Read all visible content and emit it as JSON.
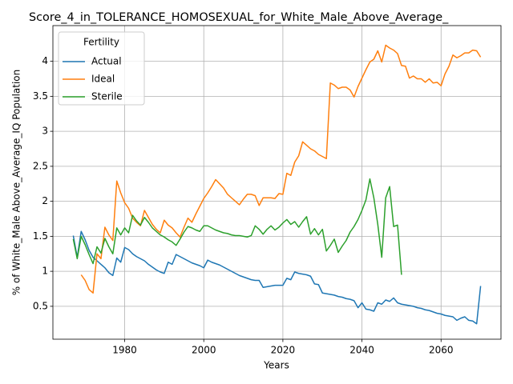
{
  "chart_data": {
    "type": "line",
    "title": "Score_4_in_TOLERANCE_HOMOSEXUAL_for_White_Male_Above_Average_",
    "xlabel": "Years",
    "ylabel": "% of White_Male Above_Average_IQ Population",
    "legend_title": "Fertility",
    "legend_position": "upper left",
    "grid": true,
    "x": [
      1967,
      1968,
      1969,
      1970,
      1971,
      1972,
      1973,
      1974,
      1975,
      1976,
      1977,
      1978,
      1979,
      1980,
      1981,
      1982,
      1983,
      1984,
      1985,
      1986,
      1987,
      1988,
      1989,
      1990,
      1991,
      1992,
      1993,
      1994,
      1995,
      1996,
      1997,
      1998,
      1999,
      2000,
      2001,
      2002,
      2003,
      2004,
      2005,
      2006,
      2007,
      2008,
      2009,
      2010,
      2011,
      2012,
      2013,
      2014,
      2015,
      2016,
      2017,
      2018,
      2019,
      2020,
      2021,
      2022,
      2023,
      2024,
      2025,
      2026,
      2027,
      2028,
      2029,
      2030,
      2031,
      2032,
      2033,
      2034,
      2035,
      2036,
      2037,
      2038,
      2039,
      2040,
      2041,
      2042,
      2043,
      2044,
      2045,
      2046,
      2047,
      2048,
      2049,
      2050,
      2051,
      2052,
      2053,
      2054,
      2055,
      2056,
      2057,
      2058,
      2059,
      2060,
      2061,
      2062,
      2063,
      2064,
      2065,
      2066,
      2067,
      2068,
      2069,
      2070
    ],
    "xlim": [
      1961.85,
      2075.15
    ],
    "xticks": [
      1980,
      2000,
      2020,
      2040,
      2060
    ],
    "ylim": [
      0.03,
      4.51
    ],
    "yticks": [
      0.5,
      1.0,
      1.5,
      2.0,
      2.5,
      3.0,
      3.5,
      4.0
    ],
    "series": [
      {
        "name": "Actual",
        "color": "#1f77b4",
        "values": [
          1.51,
          1.2,
          1.57,
          1.45,
          1.3,
          1.2,
          1.15,
          1.1,
          1.05,
          0.98,
          0.94,
          1.19,
          1.13,
          1.34,
          1.31,
          1.25,
          1.21,
          1.18,
          1.15,
          1.1,
          1.06,
          1.02,
          0.99,
          0.97,
          1.13,
          1.1,
          1.24,
          1.21,
          1.18,
          1.15,
          1.12,
          1.1,
          1.08,
          1.05,
          1.16,
          1.13,
          1.11,
          1.09,
          1.06,
          1.03,
          1.0,
          0.97,
          0.94,
          0.92,
          0.9,
          0.88,
          0.87,
          0.87,
          0.77,
          0.78,
          0.79,
          0.8,
          0.8,
          0.8,
          0.9,
          0.88,
          0.99,
          0.97,
          0.96,
          0.95,
          0.93,
          0.82,
          0.81,
          0.69,
          0.68,
          0.67,
          0.66,
          0.64,
          0.63,
          0.61,
          0.6,
          0.58,
          0.48,
          0.55,
          0.46,
          0.45,
          0.43,
          0.55,
          0.53,
          0.59,
          0.57,
          0.62,
          0.55,
          0.53,
          0.52,
          0.51,
          0.5,
          0.48,
          0.47,
          0.45,
          0.44,
          0.42,
          0.4,
          0.39,
          0.37,
          0.36,
          0.35,
          0.3,
          0.33,
          0.35,
          0.3,
          0.29,
          0.25,
          0.79
        ]
      },
      {
        "name": "Ideal",
        "color": "#ff7f0e",
        "values": [
          null,
          null,
          0.95,
          0.87,
          0.74,
          0.69,
          1.25,
          1.18,
          1.63,
          1.52,
          1.44,
          2.29,
          2.12,
          1.98,
          1.9,
          1.76,
          1.7,
          1.65,
          1.87,
          1.77,
          1.67,
          1.6,
          1.55,
          1.73,
          1.66,
          1.62,
          1.55,
          1.49,
          1.63,
          1.76,
          1.7,
          1.82,
          1.93,
          2.04,
          2.12,
          2.21,
          2.31,
          2.25,
          2.19,
          2.1,
          2.05,
          2.0,
          1.95,
          2.03,
          2.1,
          2.1,
          2.08,
          1.94,
          2.05,
          2.05,
          2.05,
          2.04,
          2.11,
          2.1,
          2.4,
          2.37,
          2.56,
          2.65,
          2.85,
          2.8,
          2.75,
          2.72,
          2.67,
          2.64,
          2.61,
          3.69,
          3.66,
          3.61,
          3.63,
          3.63,
          3.59,
          3.49,
          3.64,
          3.76,
          3.88,
          3.99,
          4.03,
          4.15,
          3.99,
          4.23,
          4.19,
          4.16,
          4.11,
          3.94,
          3.93,
          3.76,
          3.79,
          3.75,
          3.75,
          3.7,
          3.75,
          3.69,
          3.7,
          3.65,
          3.82,
          3.93,
          4.09,
          4.05,
          4.08,
          4.12,
          4.12,
          4.16,
          4.15,
          4.06
        ]
      },
      {
        "name": "Sterile",
        "color": "#2ca02c",
        "values": [
          1.46,
          1.18,
          1.5,
          1.38,
          1.24,
          1.11,
          1.35,
          1.26,
          1.47,
          1.35,
          1.25,
          1.62,
          1.52,
          1.62,
          1.55,
          1.8,
          1.72,
          1.66,
          1.77,
          1.7,
          1.62,
          1.57,
          1.52,
          1.49,
          1.45,
          1.42,
          1.37,
          1.46,
          1.56,
          1.64,
          1.62,
          1.59,
          1.57,
          1.65,
          1.65,
          1.62,
          1.59,
          1.57,
          1.55,
          1.54,
          1.52,
          1.51,
          1.51,
          1.5,
          1.49,
          1.51,
          1.65,
          1.6,
          1.53,
          1.6,
          1.65,
          1.59,
          1.63,
          1.69,
          1.74,
          1.67,
          1.71,
          1.63,
          1.71,
          1.78,
          1.53,
          1.61,
          1.52,
          1.6,
          1.29,
          1.37,
          1.46,
          1.27,
          1.36,
          1.44,
          1.56,
          1.64,
          1.74,
          1.87,
          2.02,
          2.32,
          2.05,
          1.67,
          1.2,
          2.05,
          2.21,
          1.64,
          1.66,
          0.95,
          null,
          null,
          null,
          null,
          null,
          null,
          null,
          null,
          null,
          null,
          null,
          null,
          null,
          null,
          null,
          null,
          null,
          null,
          null,
          null
        ]
      }
    ]
  }
}
